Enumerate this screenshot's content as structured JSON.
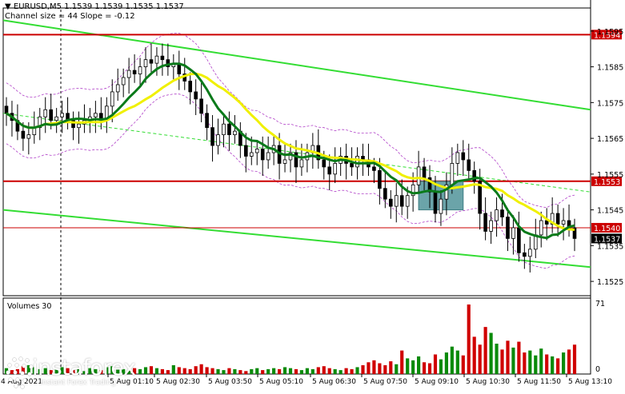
{
  "header": {
    "symbol": "EURUSD,M5",
    "ohlc": "1.1539 1.1539 1.1535 1.1537",
    "indicator": "Channel size = 44 Slope = -0.12"
  },
  "price_axis": {
    "ticks": [
      "1.1595",
      "1.1585",
      "1.1575",
      "1.1565",
      "1.1555",
      "1.1545",
      "1.1535",
      "1.1525"
    ],
    "labels": {
      "resistance": "1.1594",
      "middle": "1.1553",
      "red_line": "1.1540",
      "current": "1.1537"
    }
  },
  "volume_axis": {
    "title": "Volumes 30",
    "top": "71",
    "bottom": "0"
  },
  "time_axis": {
    "first": "4 Aug 2021",
    "labels": [
      "5 Aug 01:10",
      "5 Aug 02:30",
      "5 Aug 03:50",
      "5 Aug 05:10",
      "5 Aug 06:30",
      "5 Aug 07:50",
      "5 Aug 09:10",
      "5 Aug 10:30",
      "5 Aug 11:50",
      "5 Aug 13:10"
    ]
  },
  "logo": {
    "name": "instaforex",
    "tagline": "Instant Forex Trading"
  },
  "colors": {
    "up": "#0a8a0a",
    "down": "#d00000",
    "ma_fast": "#0a7a1a",
    "ma_slow": "#f0f000",
    "channel": "#33dd33",
    "level": "#cc0000",
    "envelope": "#b040c8",
    "box": "#5b9aa0"
  },
  "chart_data": {
    "type": "candlestick",
    "title": "EURUSD,M5",
    "ylim": [
      1.1521,
      1.1601
    ],
    "levels": [
      1.1594,
      1.1553,
      1.154
    ],
    "current_price": 1.1537,
    "close": [
      1.1572,
      1.157,
      1.1567,
      1.1565,
      1.1566,
      1.1568,
      1.1571,
      1.1573,
      1.157,
      1.1571,
      1.1572,
      1.157,
      1.1568,
      1.1569,
      1.157,
      1.1571,
      1.1572,
      1.157,
      1.1574,
      1.1578,
      1.158,
      1.1582,
      1.1584,
      1.1583,
      1.1585,
      1.1587,
      1.1586,
      1.1588,
      1.1587,
      1.1585,
      1.1586,
      1.1583,
      1.1581,
      1.1578,
      1.1576,
      1.1572,
      1.1568,
      1.1563,
      1.1566,
      1.1569,
      1.1566,
      1.1567,
      1.1563,
      1.156,
      1.1561,
      1.1562,
      1.1559,
      1.1561,
      1.1563,
      1.1558,
      1.1559,
      1.1561,
      1.1557,
      1.1559,
      1.1561,
      1.1563,
      1.1559,
      1.1557,
      1.1555,
      1.1558,
      1.156,
      1.1558,
      1.1557,
      1.156,
      1.1559,
      1.1557,
      1.1556,
      1.1551,
      1.1548,
      1.1546,
      1.1549,
      1.1546,
      1.1549,
      1.1552,
      1.1557,
      1.1554,
      1.155,
      1.1544,
      1.1548,
      1.1552,
      1.1558,
      1.1561,
      1.1559,
      1.1556,
      1.1553,
      1.1544,
      1.1539,
      1.1542,
      1.1545,
      1.1543,
      1.1537,
      1.154,
      1.1533,
      1.1532,
      1.1534,
      1.1538,
      1.1542,
      1.1541,
      1.1544,
      1.1541,
      1.1542,
      1.154,
      1.1537
    ],
    "volumes": [
      6,
      4,
      5,
      8,
      9,
      7,
      5,
      6,
      4,
      5,
      7,
      6,
      4,
      5,
      3,
      6,
      5,
      4,
      7,
      8,
      6,
      5,
      4,
      6,
      5,
      7,
      8,
      6,
      5,
      4,
      9,
      7,
      6,
      5,
      8,
      10,
      7,
      6,
      5,
      4,
      6,
      5,
      4,
      3,
      5,
      6,
      4,
      5,
      6,
      5,
      7,
      6,
      5,
      4,
      6,
      5,
      7,
      8,
      6,
      5,
      4,
      6,
      5,
      7,
      9,
      12,
      14,
      11,
      9,
      13,
      10,
      24,
      16,
      14,
      18,
      12,
      11,
      20,
      15,
      22,
      28,
      24,
      19,
      71,
      38,
      30,
      48,
      42,
      31,
      25,
      34,
      27,
      33,
      22,
      24,
      19,
      26,
      20,
      18,
      16,
      22,
      25,
      30
    ]
  }
}
